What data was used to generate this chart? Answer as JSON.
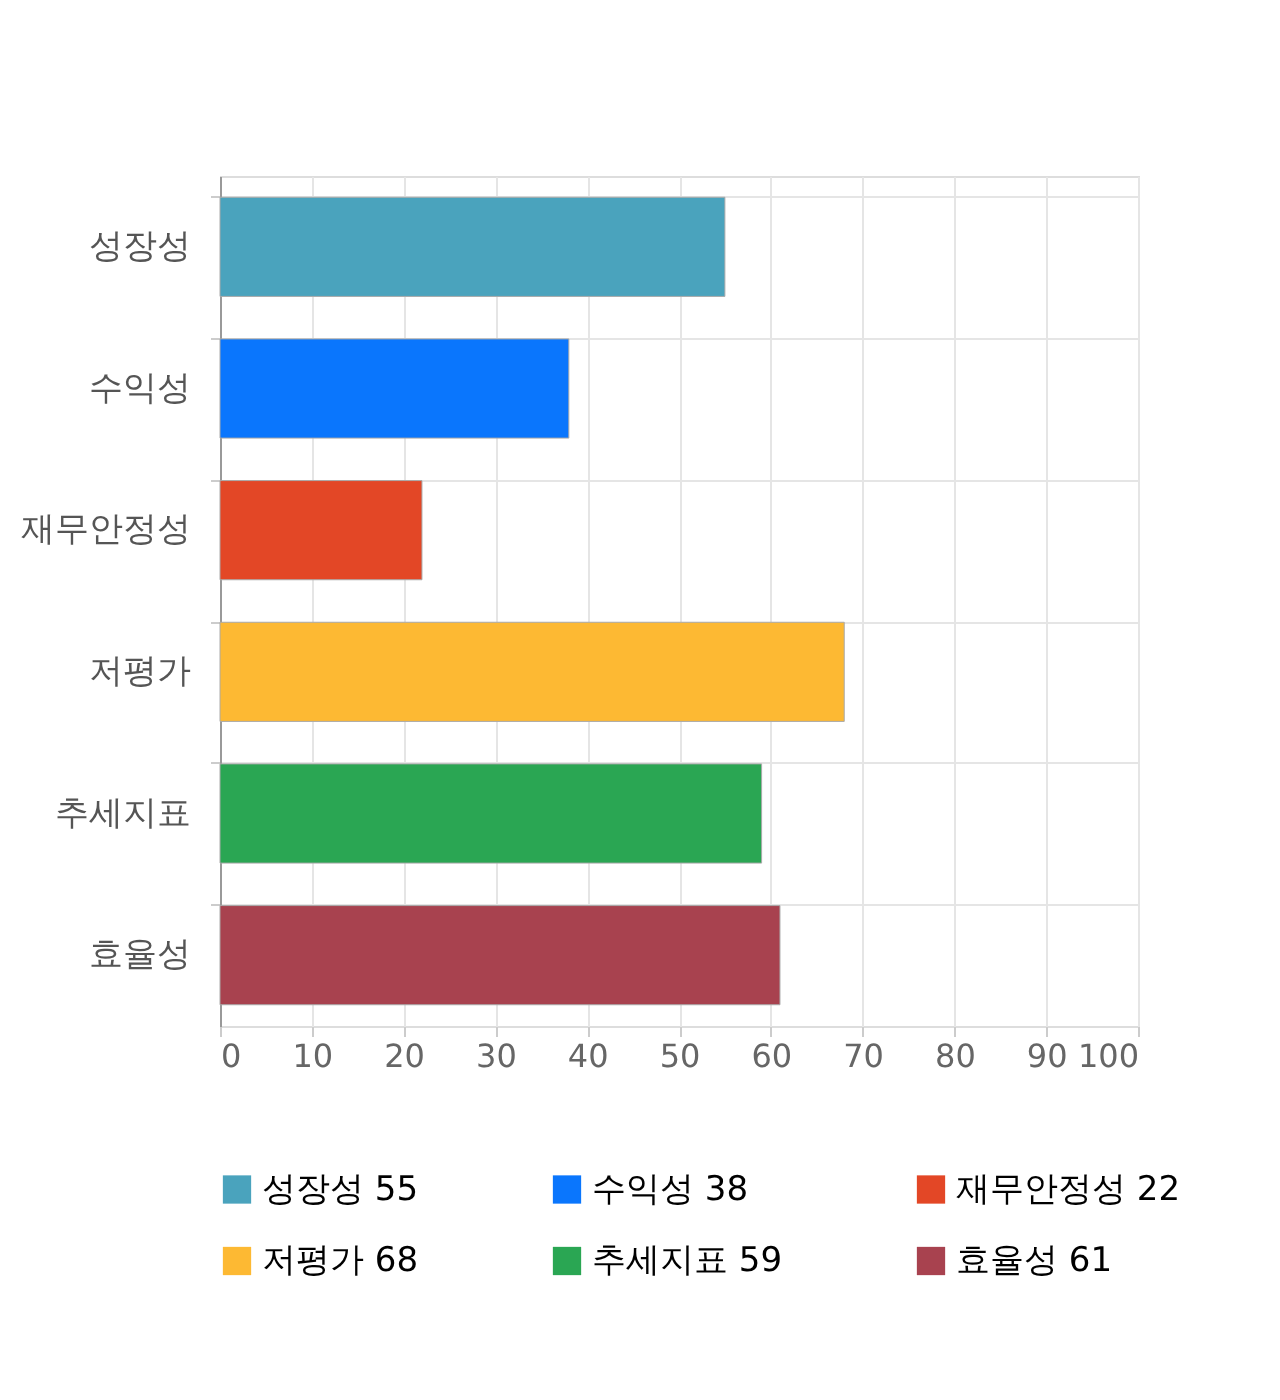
{
  "chart_data": {
    "type": "bar",
    "orientation": "horizontal",
    "stacked": true,
    "categories": [
      "성장성",
      "수익성",
      "재무안정성",
      "저평가",
      "추세지표",
      "효율성"
    ],
    "series": [
      {
        "name": "성장성 55",
        "color": "#4aa3bd",
        "values": [
          55,
          null,
          null,
          null,
          null,
          null
        ]
      },
      {
        "name": "수익성 38",
        "color": "#0a76fd",
        "values": [
          null,
          38,
          null,
          null,
          null,
          null
        ]
      },
      {
        "name": "재무안정성 22",
        "color": "#e34726",
        "values": [
          null,
          null,
          22,
          null,
          null,
          null
        ]
      },
      {
        "name": "저평가 68",
        "color": "#fdb933",
        "values": [
          null,
          null,
          null,
          68,
          null,
          null
        ]
      },
      {
        "name": "추세지표 59",
        "color": "#2aa653",
        "values": [
          null,
          null,
          null,
          null,
          59,
          null
        ]
      },
      {
        "name": "효율성 61",
        "color": "#a8424f",
        "values": [
          null,
          null,
          null,
          null,
          null,
          61
        ]
      }
    ],
    "xlim": [
      0,
      100
    ],
    "xticks": [
      0,
      10,
      20,
      30,
      40,
      50,
      60,
      70,
      80,
      90,
      100
    ],
    "grid": true,
    "legend": "bottom"
  }
}
